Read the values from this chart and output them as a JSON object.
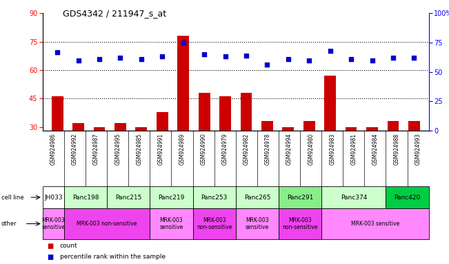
{
  "title": "GDS4342 / 211947_s_at",
  "gsm_labels": [
    "GSM924986",
    "GSM924992",
    "GSM924987",
    "GSM924995",
    "GSM924985",
    "GSM924991",
    "GSM924989",
    "GSM924990",
    "GSM924979",
    "GSM924982",
    "GSM924978",
    "GSM924994",
    "GSM924980",
    "GSM924983",
    "GSM924981",
    "GSM924984",
    "GSM924988",
    "GSM924993"
  ],
  "bar_values": [
    46,
    32,
    30,
    32,
    30,
    38,
    78,
    48,
    46,
    48,
    33,
    30,
    33,
    57,
    30,
    30,
    33,
    33
  ],
  "dot_values": [
    67,
    60,
    61,
    62,
    61,
    63,
    75,
    65,
    63,
    64,
    56,
    61,
    60,
    68,
    61,
    60,
    62,
    62
  ],
  "bar_color": "#cc0000",
  "dot_color": "#0000cc",
  "ylim_left": [
    28,
    90
  ],
  "ylim_right": [
    0,
    100
  ],
  "yticks_left": [
    30,
    45,
    60,
    75,
    90
  ],
  "yticks_right": [
    0,
    25,
    50,
    75,
    100
  ],
  "ytick_labels_right": [
    "0",
    "25",
    "50",
    "75",
    "100%"
  ],
  "hlines": [
    45,
    60,
    75
  ],
  "n_bars": 18,
  "background_color": "#ffffff",
  "cell_line_data": [
    {
      "label": "JH033",
      "cols": [
        0,
        1
      ],
      "color": "#ffffff"
    },
    {
      "label": "Panc198",
      "cols": [
        1,
        3
      ],
      "color": "#ccffcc"
    },
    {
      "label": "Panc215",
      "cols": [
        3,
        5
      ],
      "color": "#ccffcc"
    },
    {
      "label": "Panc219",
      "cols": [
        5,
        7
      ],
      "color": "#ccffcc"
    },
    {
      "label": "Panc253",
      "cols": [
        7,
        9
      ],
      "color": "#ccffcc"
    },
    {
      "label": "Panc265",
      "cols": [
        9,
        11
      ],
      "color": "#ccffcc"
    },
    {
      "label": "Panc291",
      "cols": [
        11,
        13
      ],
      "color": "#88ee88"
    },
    {
      "label": "Panc374",
      "cols": [
        13,
        16
      ],
      "color": "#ccffcc"
    },
    {
      "label": "Panc420",
      "cols": [
        16,
        18
      ],
      "color": "#00cc44"
    }
  ],
  "other_data": [
    {
      "label": "MRK-003\nsensitive",
      "cols": [
        0,
        1
      ],
      "color": "#ff88ff"
    },
    {
      "label": "MRK-003 non-sensitive",
      "cols": [
        1,
        5
      ],
      "color": "#ee44ee"
    },
    {
      "label": "MRK-003\nsensitive",
      "cols": [
        5,
        7
      ],
      "color": "#ff88ff"
    },
    {
      "label": "MRK-003\nnon-sensitive",
      "cols": [
        7,
        9
      ],
      "color": "#ee44ee"
    },
    {
      "label": "MRK-003\nsensitive",
      "cols": [
        9,
        11
      ],
      "color": "#ff88ff"
    },
    {
      "label": "MRK-003\nnon-sensitive",
      "cols": [
        11,
        13
      ],
      "color": "#ee44ee"
    },
    {
      "label": "MRK-003 sensitive",
      "cols": [
        13,
        18
      ],
      "color": "#ff88ff"
    }
  ]
}
